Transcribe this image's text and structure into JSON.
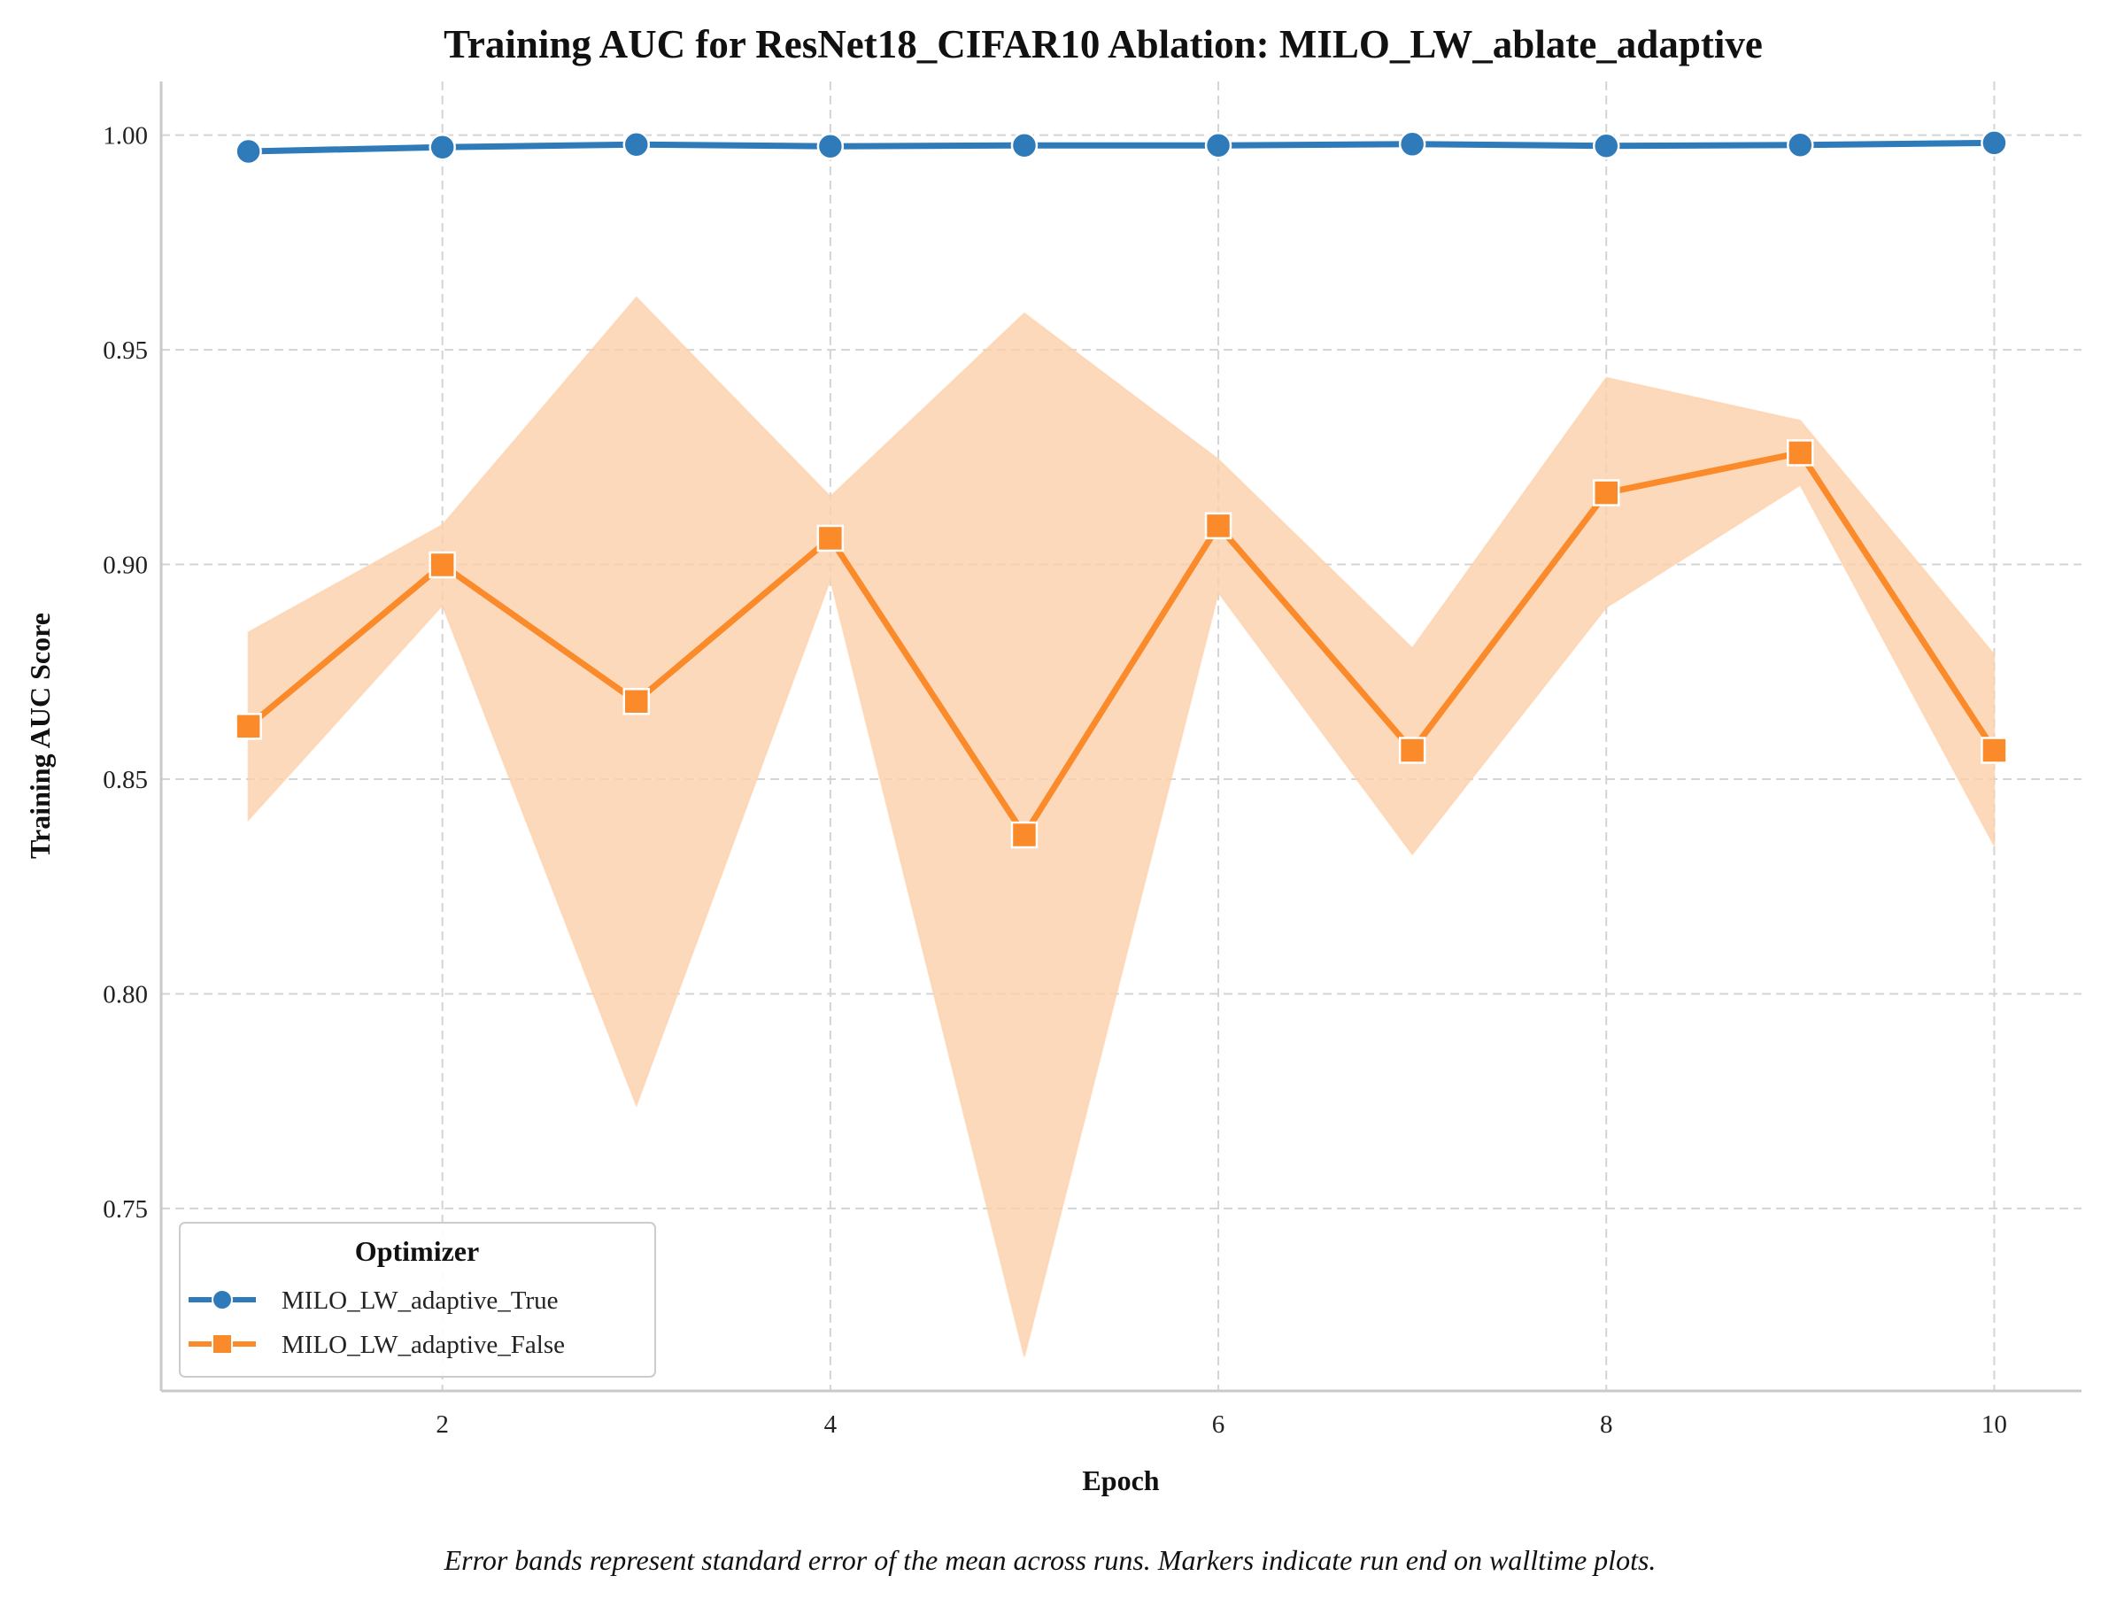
{
  "chart_data": {
    "type": "line",
    "title": "Training AUC for ResNet18_CIFAR10 Ablation: MILO_LW_ablate_adaptive",
    "xlabel": "Epoch",
    "ylabel": "Training AUC Score",
    "caption": "Error bands represent standard error of the mean across runs. Markers indicate run end on walltime plots.",
    "xlim": [
      0.55,
      10.45
    ],
    "ylim": [
      0.7075,
      1.0125
    ],
    "x_ticks": [
      2,
      4,
      6,
      8,
      10
    ],
    "y_ticks": [
      0.75,
      0.8,
      0.85,
      0.9,
      0.95,
      1.0
    ],
    "x_tick_labels": [
      "2",
      "4",
      "6",
      "8",
      "10"
    ],
    "y_tick_labels": [
      "0.75",
      "0.80",
      "0.85",
      "0.90",
      "0.95",
      "1.00"
    ],
    "grid": true,
    "legend": {
      "title": "Optimizer",
      "position": "bottom-left"
    },
    "x": [
      1,
      2,
      3,
      4,
      5,
      6,
      7,
      8,
      9,
      10
    ],
    "series": [
      {
        "name": "MILO_LW_adaptive_True",
        "color": "#2f7ab9",
        "marker": "circle",
        "values": [
          0.9962,
          0.9972,
          0.9978,
          0.9974,
          0.9976,
          0.9976,
          0.9979,
          0.9975,
          0.9977,
          0.9982
        ],
        "lower": [
          0.9959,
          0.997,
          0.9976,
          0.9972,
          0.9974,
          0.9974,
          0.9977,
          0.9973,
          0.9975,
          0.998
        ],
        "upper": [
          0.9965,
          0.9974,
          0.998,
          0.9976,
          0.9978,
          0.9978,
          0.9981,
          0.9977,
          0.9979,
          0.9984
        ]
      },
      {
        "name": "MILO_LW_adaptive_False",
        "color": "#fb8a2a",
        "band_color": "#fdd0aa",
        "marker": "square",
        "values": [
          0.8623,
          0.8999,
          0.8681,
          0.9061,
          0.837,
          0.909,
          0.8567,
          0.9167,
          0.926,
          0.8567
        ],
        "lower": [
          0.8405,
          0.8905,
          0.774,
          0.8965,
          0.7155,
          0.8935,
          0.8325,
          0.89,
          0.9185,
          0.8345
        ],
        "upper": [
          0.8842,
          0.9092,
          0.9622,
          0.9158,
          0.9585,
          0.9245,
          0.8805,
          0.9435,
          0.9335,
          0.879
        ]
      }
    ]
  }
}
